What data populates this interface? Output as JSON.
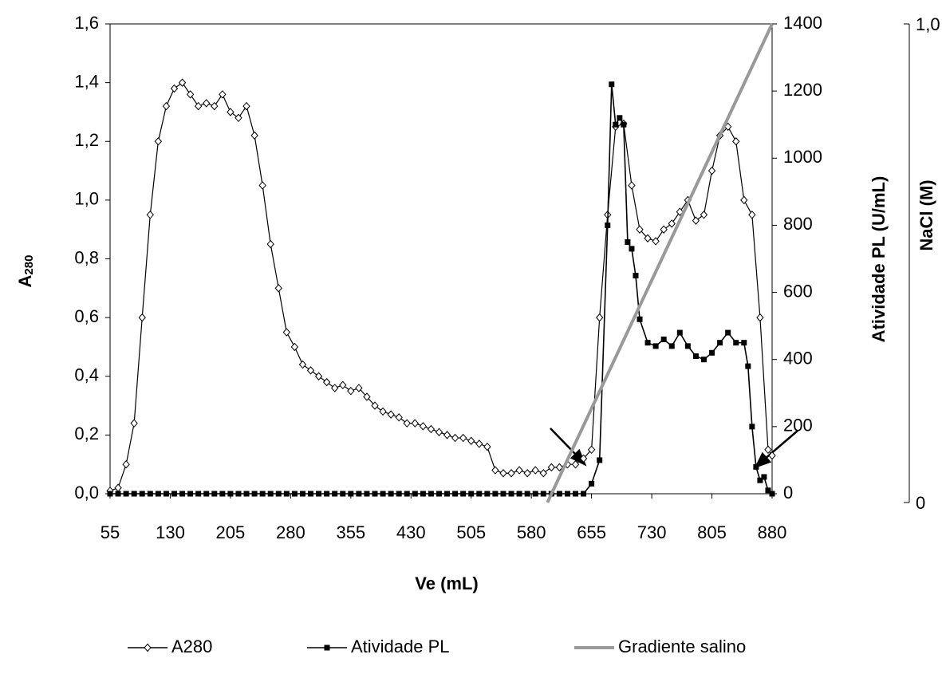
{
  "chart_data": {
    "type": "line",
    "x_label": "Ve (mL)",
    "y_label_main": "A",
    "y_label_sub": "280",
    "y2_label": "Atividade PL (U/mL)",
    "y3_label": "NaCl (M)",
    "xlim": [
      55,
      880
    ],
    "xticks": [
      55,
      130,
      205,
      280,
      355,
      430,
      505,
      580,
      655,
      730,
      805,
      880
    ],
    "ylim": [
      0,
      1.6
    ],
    "yticks": [
      {
        "value": 0,
        "label": "0,0"
      },
      {
        "value": 0.2,
        "label": "0,2"
      },
      {
        "value": 0.4,
        "label": "0,4"
      },
      {
        "value": 0.6,
        "label": "0,6"
      },
      {
        "value": 0.8,
        "label": "0,8"
      },
      {
        "value": 1.0,
        "label": "1,0"
      },
      {
        "value": 1.2,
        "label": "1,2"
      },
      {
        "value": 1.4,
        "label": "1,4"
      },
      {
        "value": 1.6,
        "label": "1,6"
      }
    ],
    "y2lim": [
      0,
      1400
    ],
    "y2ticks": [
      0,
      200,
      400,
      600,
      800,
      1000,
      1200,
      1400
    ],
    "y3lim": [
      0,
      1.0
    ],
    "y3ticks": [
      0,
      {
        "value": 1.0,
        "label": "1,0"
      }
    ],
    "series": [
      {
        "name": "A280",
        "color": "#000000",
        "marker": "diamond",
        "x": [
          55,
          65,
          75,
          85,
          95,
          105,
          115,
          125,
          135,
          145,
          155,
          165,
          175,
          185,
          195,
          205,
          215,
          225,
          235,
          245,
          255,
          265,
          275,
          285,
          295,
          305,
          315,
          325,
          335,
          345,
          355,
          365,
          375,
          385,
          395,
          405,
          415,
          425,
          435,
          445,
          455,
          465,
          475,
          485,
          495,
          505,
          515,
          525,
          535,
          545,
          555,
          565,
          575,
          585,
          595,
          605,
          615,
          625,
          635,
          645,
          655,
          665,
          675,
          685,
          695,
          705,
          715,
          725,
          735,
          745,
          755,
          765,
          775,
          785,
          795,
          805,
          815,
          825,
          835,
          845,
          855,
          865,
          875,
          880
        ],
        "values": [
          0.01,
          0.02,
          0.1,
          0.24,
          0.6,
          0.95,
          1.2,
          1.32,
          1.38,
          1.4,
          1.36,
          1.32,
          1.33,
          1.32,
          1.36,
          1.3,
          1.28,
          1.32,
          1.22,
          1.05,
          0.85,
          0.7,
          0.55,
          0.5,
          0.44,
          0.42,
          0.4,
          0.38,
          0.36,
          0.37,
          0.35,
          0.36,
          0.33,
          0.3,
          0.28,
          0.27,
          0.26,
          0.24,
          0.24,
          0.23,
          0.22,
          0.21,
          0.2,
          0.19,
          0.19,
          0.18,
          0.17,
          0.16,
          0.08,
          0.07,
          0.07,
          0.08,
          0.07,
          0.08,
          0.07,
          0.09,
          0.09,
          0.1,
          0.1,
          0.12,
          0.15,
          0.6,
          0.95,
          1.25,
          1.26,
          1.05,
          0.9,
          0.87,
          0.86,
          0.9,
          0.92,
          0.96,
          1.0,
          0.93,
          0.95,
          1.1,
          1.22,
          1.25,
          1.2,
          1.0,
          0.95,
          0.6,
          0.15,
          0.13
        ]
      },
      {
        "name": "Atividade PL",
        "color": "#000000",
        "marker": "square",
        "axis": "y2",
        "x": [
          55,
          65,
          75,
          85,
          95,
          105,
          115,
          125,
          135,
          145,
          155,
          165,
          175,
          185,
          195,
          205,
          215,
          225,
          235,
          245,
          255,
          265,
          275,
          285,
          295,
          305,
          315,
          325,
          335,
          345,
          355,
          365,
          375,
          385,
          395,
          405,
          415,
          425,
          435,
          445,
          455,
          465,
          475,
          485,
          495,
          505,
          515,
          525,
          535,
          545,
          555,
          565,
          575,
          585,
          595,
          605,
          615,
          625,
          635,
          645,
          655,
          665,
          675,
          680,
          685,
          690,
          695,
          700,
          705,
          710,
          715,
          725,
          735,
          745,
          755,
          765,
          775,
          785,
          795,
          805,
          815,
          825,
          835,
          845,
          850,
          855,
          860,
          865,
          870,
          875,
          880
        ],
        "values": [
          0,
          0,
          0,
          0,
          0,
          0,
          0,
          0,
          0,
          0,
          0,
          0,
          0,
          0,
          0,
          0,
          0,
          0,
          0,
          0,
          0,
          0,
          0,
          0,
          0,
          0,
          0,
          0,
          0,
          0,
          0,
          0,
          0,
          0,
          0,
          0,
          0,
          0,
          0,
          0,
          0,
          0,
          0,
          0,
          0,
          0,
          0,
          0,
          0,
          0,
          0,
          0,
          0,
          0,
          0,
          0,
          0,
          0,
          0,
          0,
          30,
          100,
          800,
          1220,
          1100,
          1120,
          1100,
          750,
          730,
          650,
          520,
          450,
          440,
          460,
          440,
          480,
          440,
          410,
          400,
          420,
          450,
          480,
          450,
          450,
          380,
          200,
          80,
          40,
          50,
          10,
          0
        ]
      },
      {
        "name": "Gradiente salino",
        "color": "#999999",
        "axis": "y3",
        "x": [
          600,
          880
        ],
        "values": [
          0,
          1.0
        ]
      }
    ],
    "legend": "bottom"
  }
}
